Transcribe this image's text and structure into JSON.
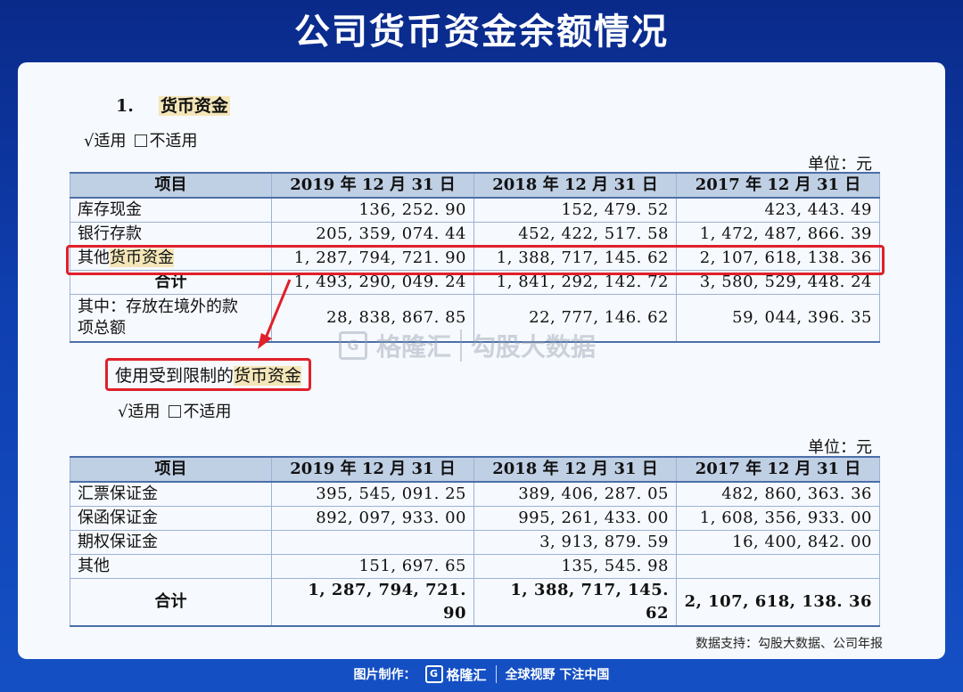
{
  "title": "公司货币资金余额情况",
  "section": {
    "number": "1.",
    "heading": "货币资金"
  },
  "checkbox": {
    "applicable": "√适用",
    "not_applicable": "不适用"
  },
  "unit": "单位：元",
  "table1": {
    "headers": [
      "项目",
      "2019 年 12 月 31 日",
      "2018 年 12 月 31 日",
      "2017 年 12 月 31 日"
    ],
    "rows": [
      {
        "label": "库存现金",
        "v2019": "136, 252. 90",
        "v2018": "152, 479. 52",
        "v2017": "423, 443. 49"
      },
      {
        "label": "银行存款",
        "v2019": "205, 359, 074. 44",
        "v2018": "452, 422, 517. 58",
        "v2017": "1, 472, 487, 866. 39"
      },
      {
        "label_pre": "其他",
        "label_hl": "货币资金",
        "v2019": "1, 287, 794, 721. 90",
        "v2018": "1, 388, 717, 145. 62",
        "v2017": "2, 107, 618, 138. 36"
      },
      {
        "label": "合计",
        "v2019": "1, 493, 290, 049. 24",
        "v2018": "1, 841, 292, 142. 72",
        "v2017": "3, 580, 529, 448. 24"
      },
      {
        "label_line1": "其中：存放在境外的款",
        "label_line2": "项总额",
        "v2019": "28, 838, 867. 85",
        "v2018": "22, 777, 146. 62",
        "v2017": "59, 044, 396. 35"
      }
    ]
  },
  "restricted": {
    "label_pre": "使用受到限制的",
    "label_hl": "货币资金"
  },
  "table2": {
    "headers": [
      "项目",
      "2019 年 12 月 31 日",
      "2018 年 12 月 31 日",
      "2017 年 12 月 31 日"
    ],
    "rows": [
      {
        "label": "汇票保证金",
        "v2019": "395, 545, 091. 25",
        "v2018": "389, 406, 287. 05",
        "v2017": "482, 860, 363. 36"
      },
      {
        "label": "保函保证金",
        "v2019": "892, 097, 933. 00",
        "v2018": "995, 261, 433. 00",
        "v2017": "1, 608, 356, 933. 00"
      },
      {
        "label": "期权保证金",
        "v2019": "",
        "v2018": "3, 913, 879. 59",
        "v2017": "16, 400, 842. 00"
      },
      {
        "label": "其他",
        "v2019": "151, 697. 65",
        "v2018": "135, 545. 98",
        "v2017": ""
      },
      {
        "label": "合计",
        "v2019": "1, 287, 794, 721. 90",
        "v2018": "1, 388, 717, 145. 62",
        "v2017": "2, 107, 618, 138. 36"
      }
    ]
  },
  "watermark": {
    "logo_glyph": "G",
    "brand": "格隆汇",
    "text": "勾股大数据"
  },
  "source_note": "数据支持：勾股大数据、公司年报",
  "footer": {
    "made_by": "图片制作：",
    "logo_glyph": "G",
    "brand": "格隆汇",
    "slogan": "全球视野 下注中国"
  },
  "colors": {
    "background": "#0f3fb0",
    "highlight_box": "#e0202a",
    "header_fill": "#bfcfe4"
  }
}
